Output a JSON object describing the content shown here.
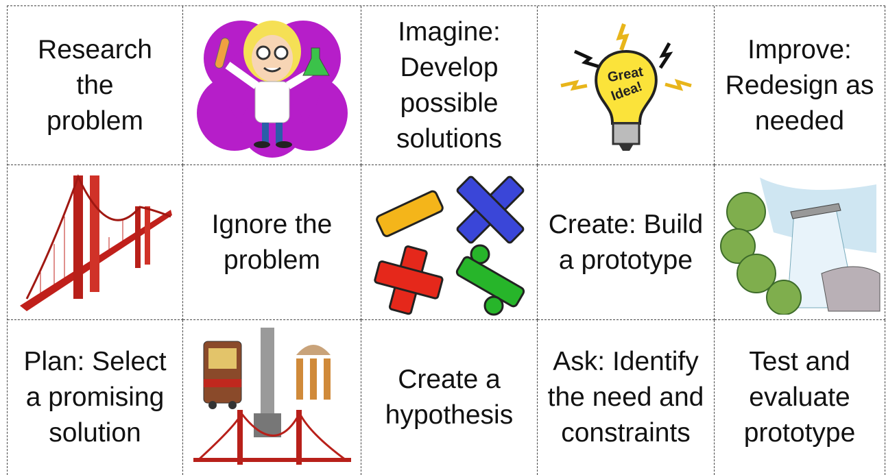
{
  "table": {
    "rows": [
      [
        "Research the problem",
        "Imagine: Develop possible solutions",
        "Improve: Redesign as needed"
      ],
      [
        "Ignore the problem",
        "Create: Build a prototype"
      ],
      [
        "Plan: Select a promising solution",
        "Create a hypothesis",
        "Ask: Identify the need and constraints",
        "Test and evaluate prototype"
      ]
    ]
  }
}
